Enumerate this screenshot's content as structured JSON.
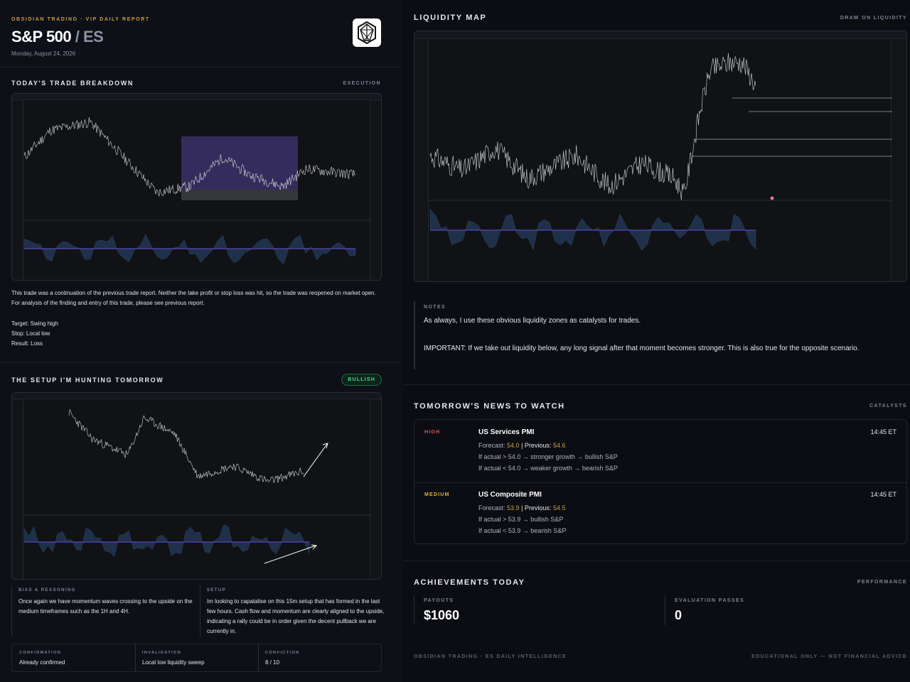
{
  "header": {
    "eyebrow": "OBSIDIAN TRADING · VIP DAILY REPORT",
    "title_main": "S&P 500",
    "title_sub": "/ ES",
    "date": "Monday, August 24, 2026"
  },
  "breakdown": {
    "title": "TODAY'S TRADE BREAKDOWN",
    "tag": "EXECUTION",
    "paragraph": "This trade was a continuation of the previous trade report. Neither the take profit or stop loss was hit, so the trade was reopened on market open. For analysis of the finding and entry of this trade, please see previous report.",
    "target": "Target: Swing high",
    "stop": "Stop: Local low",
    "result": "Result: Loss"
  },
  "setup": {
    "title": "THE SETUP I'M HUNTING TOMORROW",
    "badge": "BULLISH",
    "bias_label": "BIAS & REASONING",
    "bias_text": "Once again we have momentum waves crossing to the upside on the medium timeframes such as the 1H and 4H.",
    "setup_label": "SETUP",
    "setup_text": "Im looking to capatalise on this 15m setup that has formed in the last few hours. Cash flow and momentum are clearly aligned to the upside, indicating a rally could be in order given the decent pullback we are currently in.",
    "confirmation_label": "CONFIRMATION",
    "confirmation_value": "Already confirmed",
    "invalidation_label": "INVALIDATION",
    "invalidation_value": "Local low liquidity sweep",
    "conviction_label": "CONVICTION",
    "conviction_value": "8 / 10"
  },
  "liquidity": {
    "title": "LIQUIDITY MAP",
    "tag": "DRAW ON LIQUIDITY"
  },
  "notes": {
    "label": "NOTES",
    "line1": "As always, I use these obvious liquidity zones as catalysts for trades.",
    "line2": "IMPORTANT: If we take out liquidity below, any long signal after that moment becomes stronger. This is also true for the opposite scenario."
  },
  "news": {
    "title": "TOMORROW'S NEWS TO WATCH",
    "tag": "CATALYSTS",
    "items": [
      {
        "impact": "HIGH",
        "impact_color": "#e0525f",
        "name": "US Services PMI",
        "time": "14:45 ET",
        "forecast_label": "Forecast:",
        "forecast": "54.0",
        "previous_label": "| Previous:",
        "previous": "54.6",
        "if_up": "If actual > 54.0 → stronger growth → bullish S&P",
        "if_down": "If actual < 54.0 → weaker growth → bearish S&P"
      },
      {
        "impact": "MEDIUM",
        "impact_color": "#e3b341",
        "name": "US Composite PMI",
        "time": "14:45 ET",
        "forecast_label": "Forecast:",
        "forecast": "53.9",
        "previous_label": "| Previous:",
        "previous": "54.5",
        "if_up": "If actual > 53.9 → bullish S&P",
        "if_down": "If actual < 53.9 → bearish S&P"
      }
    ]
  },
  "achievements": {
    "title": "ACHIEVEMENTS TODAY",
    "tag": "PERFORMANCE",
    "payouts_label": "PAYOUTS",
    "payouts_value": "$1060",
    "evals_label": "EVALUATION PASSES",
    "evals_value": "0"
  },
  "footer": {
    "left": "OBSIDIAN TRADING · ES DAILY INTELLIGENCE",
    "right": "EDUCATIONAL ONLY — NOT FINANCIAL ADVICE"
  },
  "colors": {
    "accent_gold": "#c9a14a",
    "bullish_green": "#3ee28a",
    "zone_purple": "#4a3a86",
    "wave_blue": "#2b4a75"
  },
  "icons": {
    "logo": "obsidian-crystal-logo"
  }
}
